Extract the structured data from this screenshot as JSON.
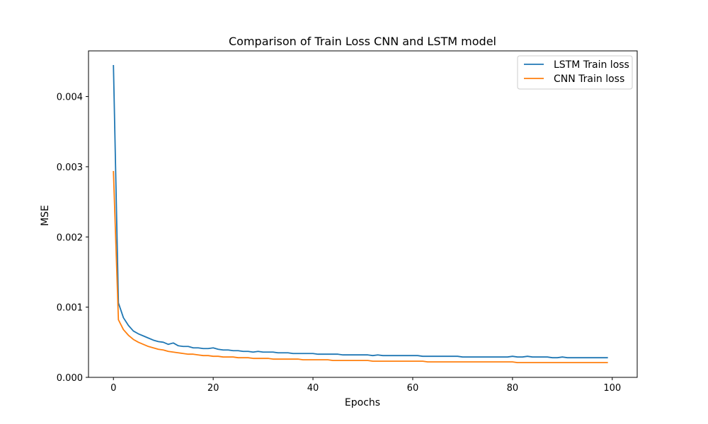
{
  "chart_data": {
    "type": "line",
    "title": "Comparison of Train Loss CNN and LSTM model",
    "xlabel": "Epochs",
    "ylabel": "MSE",
    "xlim": [
      -5,
      105
    ],
    "ylim": [
      0,
      0.00465
    ],
    "x_ticks": [
      0,
      20,
      40,
      60,
      80,
      100
    ],
    "x_tick_labels": [
      "0",
      "20",
      "40",
      "60",
      "80",
      "100"
    ],
    "y_ticks": [
      0,
      0.001,
      0.002,
      0.003,
      0.004
    ],
    "y_tick_labels": [
      "0.000",
      "0.001",
      "0.002",
      "0.003",
      "0.004"
    ],
    "grid": false,
    "legend_position": "top-right",
    "series": [
      {
        "name": "LSTM Train loss",
        "color": "#1f77b4",
        "x": [
          0,
          1,
          2,
          3,
          4,
          5,
          6,
          7,
          8,
          9,
          10,
          11,
          12,
          13,
          14,
          15,
          16,
          17,
          18,
          19,
          20,
          21,
          22,
          23,
          24,
          25,
          26,
          27,
          28,
          29,
          30,
          31,
          32,
          33,
          34,
          35,
          36,
          37,
          38,
          39,
          40,
          41,
          42,
          43,
          44,
          45,
          46,
          47,
          48,
          49,
          50,
          51,
          52,
          53,
          54,
          55,
          56,
          57,
          58,
          59,
          60,
          61,
          62,
          63,
          64,
          65,
          66,
          67,
          68,
          69,
          70,
          71,
          72,
          73,
          74,
          75,
          76,
          77,
          78,
          79,
          80,
          81,
          82,
          83,
          84,
          85,
          86,
          87,
          88,
          89,
          90,
          91,
          92,
          93,
          94,
          95,
          96,
          97,
          98,
          99
        ],
        "values": [
          0.00444,
          0.00106,
          0.00085,
          0.00074,
          0.00066,
          0.00062,
          0.00059,
          0.00056,
          0.00053,
          0.00051,
          0.0005,
          0.00047,
          0.00049,
          0.00045,
          0.00044,
          0.00044,
          0.00042,
          0.00042,
          0.00041,
          0.00041,
          0.00042,
          0.0004,
          0.00039,
          0.00039,
          0.00038,
          0.00038,
          0.00037,
          0.00037,
          0.00036,
          0.00037,
          0.00036,
          0.00036,
          0.00036,
          0.00035,
          0.00035,
          0.00035,
          0.00034,
          0.00034,
          0.00034,
          0.00034,
          0.00034,
          0.00033,
          0.00033,
          0.00033,
          0.00033,
          0.00033,
          0.00032,
          0.00032,
          0.00032,
          0.00032,
          0.00032,
          0.00032,
          0.00031,
          0.00032,
          0.00031,
          0.00031,
          0.00031,
          0.00031,
          0.00031,
          0.00031,
          0.00031,
          0.00031,
          0.0003,
          0.0003,
          0.0003,
          0.0003,
          0.0003,
          0.0003,
          0.0003,
          0.0003,
          0.00029,
          0.00029,
          0.00029,
          0.00029,
          0.00029,
          0.00029,
          0.00029,
          0.00029,
          0.00029,
          0.00029,
          0.0003,
          0.00029,
          0.00029,
          0.0003,
          0.00029,
          0.00029,
          0.00029,
          0.00029,
          0.00028,
          0.00028,
          0.00029,
          0.00028,
          0.00028,
          0.00028,
          0.00028,
          0.00028,
          0.00028,
          0.00028,
          0.00028,
          0.00028
        ]
      },
      {
        "name": "CNN Train loss",
        "color": "#ff7f0e",
        "x": [
          0,
          1,
          2,
          3,
          4,
          5,
          6,
          7,
          8,
          9,
          10,
          11,
          12,
          13,
          14,
          15,
          16,
          17,
          18,
          19,
          20,
          21,
          22,
          23,
          24,
          25,
          26,
          27,
          28,
          29,
          30,
          31,
          32,
          33,
          34,
          35,
          36,
          37,
          38,
          39,
          40,
          41,
          42,
          43,
          44,
          45,
          46,
          47,
          48,
          49,
          50,
          51,
          52,
          53,
          54,
          55,
          56,
          57,
          58,
          59,
          60,
          61,
          62,
          63,
          64,
          65,
          66,
          67,
          68,
          69,
          70,
          71,
          72,
          73,
          74,
          75,
          76,
          77,
          78,
          79,
          80,
          81,
          82,
          83,
          84,
          85,
          86,
          87,
          88,
          89,
          90,
          91,
          92,
          93,
          94,
          95,
          96,
          97,
          98,
          99
        ],
        "values": [
          0.00293,
          0.00082,
          0.00068,
          0.0006,
          0.00054,
          0.0005,
          0.00047,
          0.00044,
          0.00042,
          0.0004,
          0.00039,
          0.00037,
          0.00036,
          0.00035,
          0.00034,
          0.00033,
          0.00033,
          0.00032,
          0.00031,
          0.00031,
          0.0003,
          0.0003,
          0.00029,
          0.00029,
          0.00029,
          0.00028,
          0.00028,
          0.00028,
          0.00027,
          0.00027,
          0.00027,
          0.00027,
          0.00026,
          0.00026,
          0.00026,
          0.00026,
          0.00026,
          0.00026,
          0.00025,
          0.00025,
          0.00025,
          0.00025,
          0.00025,
          0.00025,
          0.00024,
          0.00024,
          0.00024,
          0.00024,
          0.00024,
          0.00024,
          0.00024,
          0.00024,
          0.00023,
          0.00023,
          0.00023,
          0.00023,
          0.00023,
          0.00023,
          0.00023,
          0.00023,
          0.00023,
          0.00023,
          0.00023,
          0.00022,
          0.00022,
          0.00022,
          0.00022,
          0.00022,
          0.00022,
          0.00022,
          0.00022,
          0.00022,
          0.00022,
          0.00022,
          0.00022,
          0.00022,
          0.00022,
          0.00022,
          0.00022,
          0.00022,
          0.00022,
          0.00021,
          0.00021,
          0.00021,
          0.00021,
          0.00021,
          0.00021,
          0.00021,
          0.00021,
          0.00021,
          0.00021,
          0.00021,
          0.00021,
          0.00021,
          0.00021,
          0.00021,
          0.00021,
          0.00021,
          0.00021,
          0.00021
        ]
      }
    ]
  }
}
